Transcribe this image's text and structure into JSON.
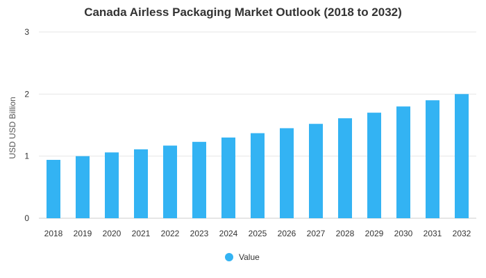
{
  "chart_data": {
    "type": "bar",
    "title": "Canada Airless Packaging Market Outlook (2018 to 2032)",
    "xlabel": "",
    "ylabel": "USD USD Billion",
    "categories": [
      "2018",
      "2019",
      "2020",
      "2021",
      "2022",
      "2023",
      "2024",
      "2025",
      "2026",
      "2027",
      "2028",
      "2029",
      "2030",
      "2031",
      "2032"
    ],
    "series": [
      {
        "name": "Value",
        "values": [
          0.94,
          1.0,
          1.06,
          1.11,
          1.17,
          1.23,
          1.3,
          1.37,
          1.45,
          1.52,
          1.61,
          1.7,
          1.8,
          1.9,
          2.0
        ]
      }
    ],
    "ylim": [
      0,
      3
    ],
    "yticks": [
      0,
      1,
      2,
      3
    ],
    "grid": true,
    "legend_position": "bottom-center",
    "colors": {
      "bar": "#33B3F3",
      "grid": "#E6E6E6",
      "text": "#333333"
    }
  }
}
